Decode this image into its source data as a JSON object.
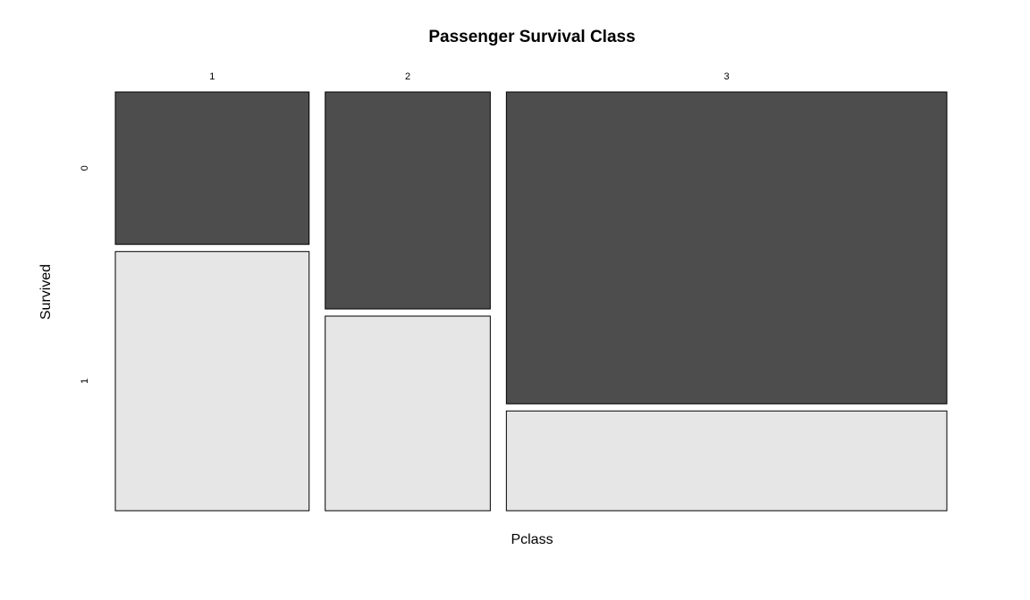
{
  "chart_data": {
    "type": "mosaic",
    "title": "Passenger Survival Class",
    "xlabel": "Pclass",
    "ylabel": "Survived",
    "categories": [
      "1",
      "2",
      "3"
    ],
    "levels": [
      "0",
      "1"
    ],
    "counts": {
      "1": {
        "0": 80,
        "1": 136
      },
      "2": {
        "0": 97,
        "1": 87
      },
      "3": {
        "0": 372,
        "1": 119
      }
    },
    "colors": {
      "0": "#4d4d4d",
      "1": "#e6e6e6"
    }
  }
}
